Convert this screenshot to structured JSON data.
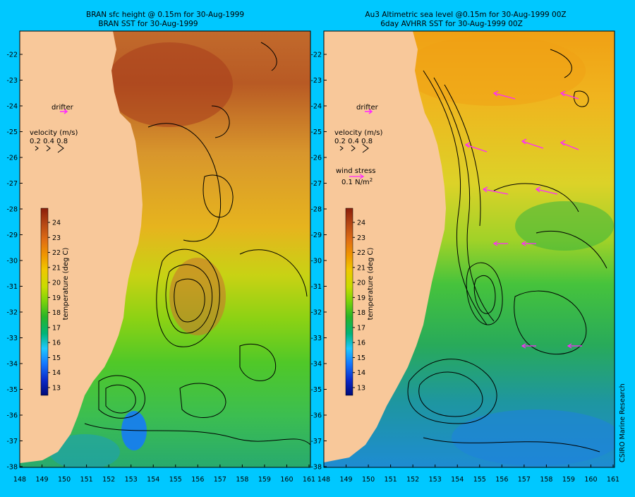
{
  "left_panel": {
    "title_line1": "BRAN sfc height @ 0.15m  for 30-Aug-1999",
    "title_line2": "BRAN SST for 30-Aug-1999",
    "drifter_label": "drifter",
    "velocity_label": "velocity (m/s)",
    "velocity_scale": "0.2 0.4 0.8"
  },
  "right_panel": {
    "title_line1": "Au3 Altimetric sea level  @0.15m  for 30-Aug-1999 00Z",
    "title_line2": "6day AVHRR SST for 30-Aug-1999 00Z",
    "drifter_label": "drifter",
    "velocity_label": "velocity (m/s)",
    "velocity_scale": "0.2 0.4 0.8",
    "wind_stress_label": "wind stress",
    "wind_stress_value": "0.1 N/m",
    "wind_stress_exp": "2"
  },
  "colorbar": {
    "label": "temperature (deg C)",
    "ticks": [
      "13",
      "14",
      "15",
      "16",
      "17",
      "18",
      "19",
      "20",
      "21",
      "22",
      "23",
      "24"
    ],
    "colors": [
      "#000a78",
      "#0a28c8",
      "#1478ff",
      "#1ec8ff",
      "#00b478",
      "#28b428",
      "#78d20a",
      "#c8dc00",
      "#f0c800",
      "#f09600",
      "#e06e14",
      "#b44614",
      "#8c1e0a"
    ]
  },
  "axes": {
    "x_ticks": [
      "148",
      "149",
      "150",
      "151",
      "152",
      "153",
      "154",
      "155",
      "156",
      "157",
      "158",
      "159",
      "160",
      "161"
    ],
    "y_ticks": [
      "-22",
      "-23",
      "-24",
      "-25",
      "-26",
      "-27",
      "-28",
      "-29",
      "-30",
      "-31",
      "-32",
      "-33",
      "-34",
      "-35",
      "-36",
      "-37",
      "-38"
    ]
  },
  "credit": "CSIRO Marine Research"
}
